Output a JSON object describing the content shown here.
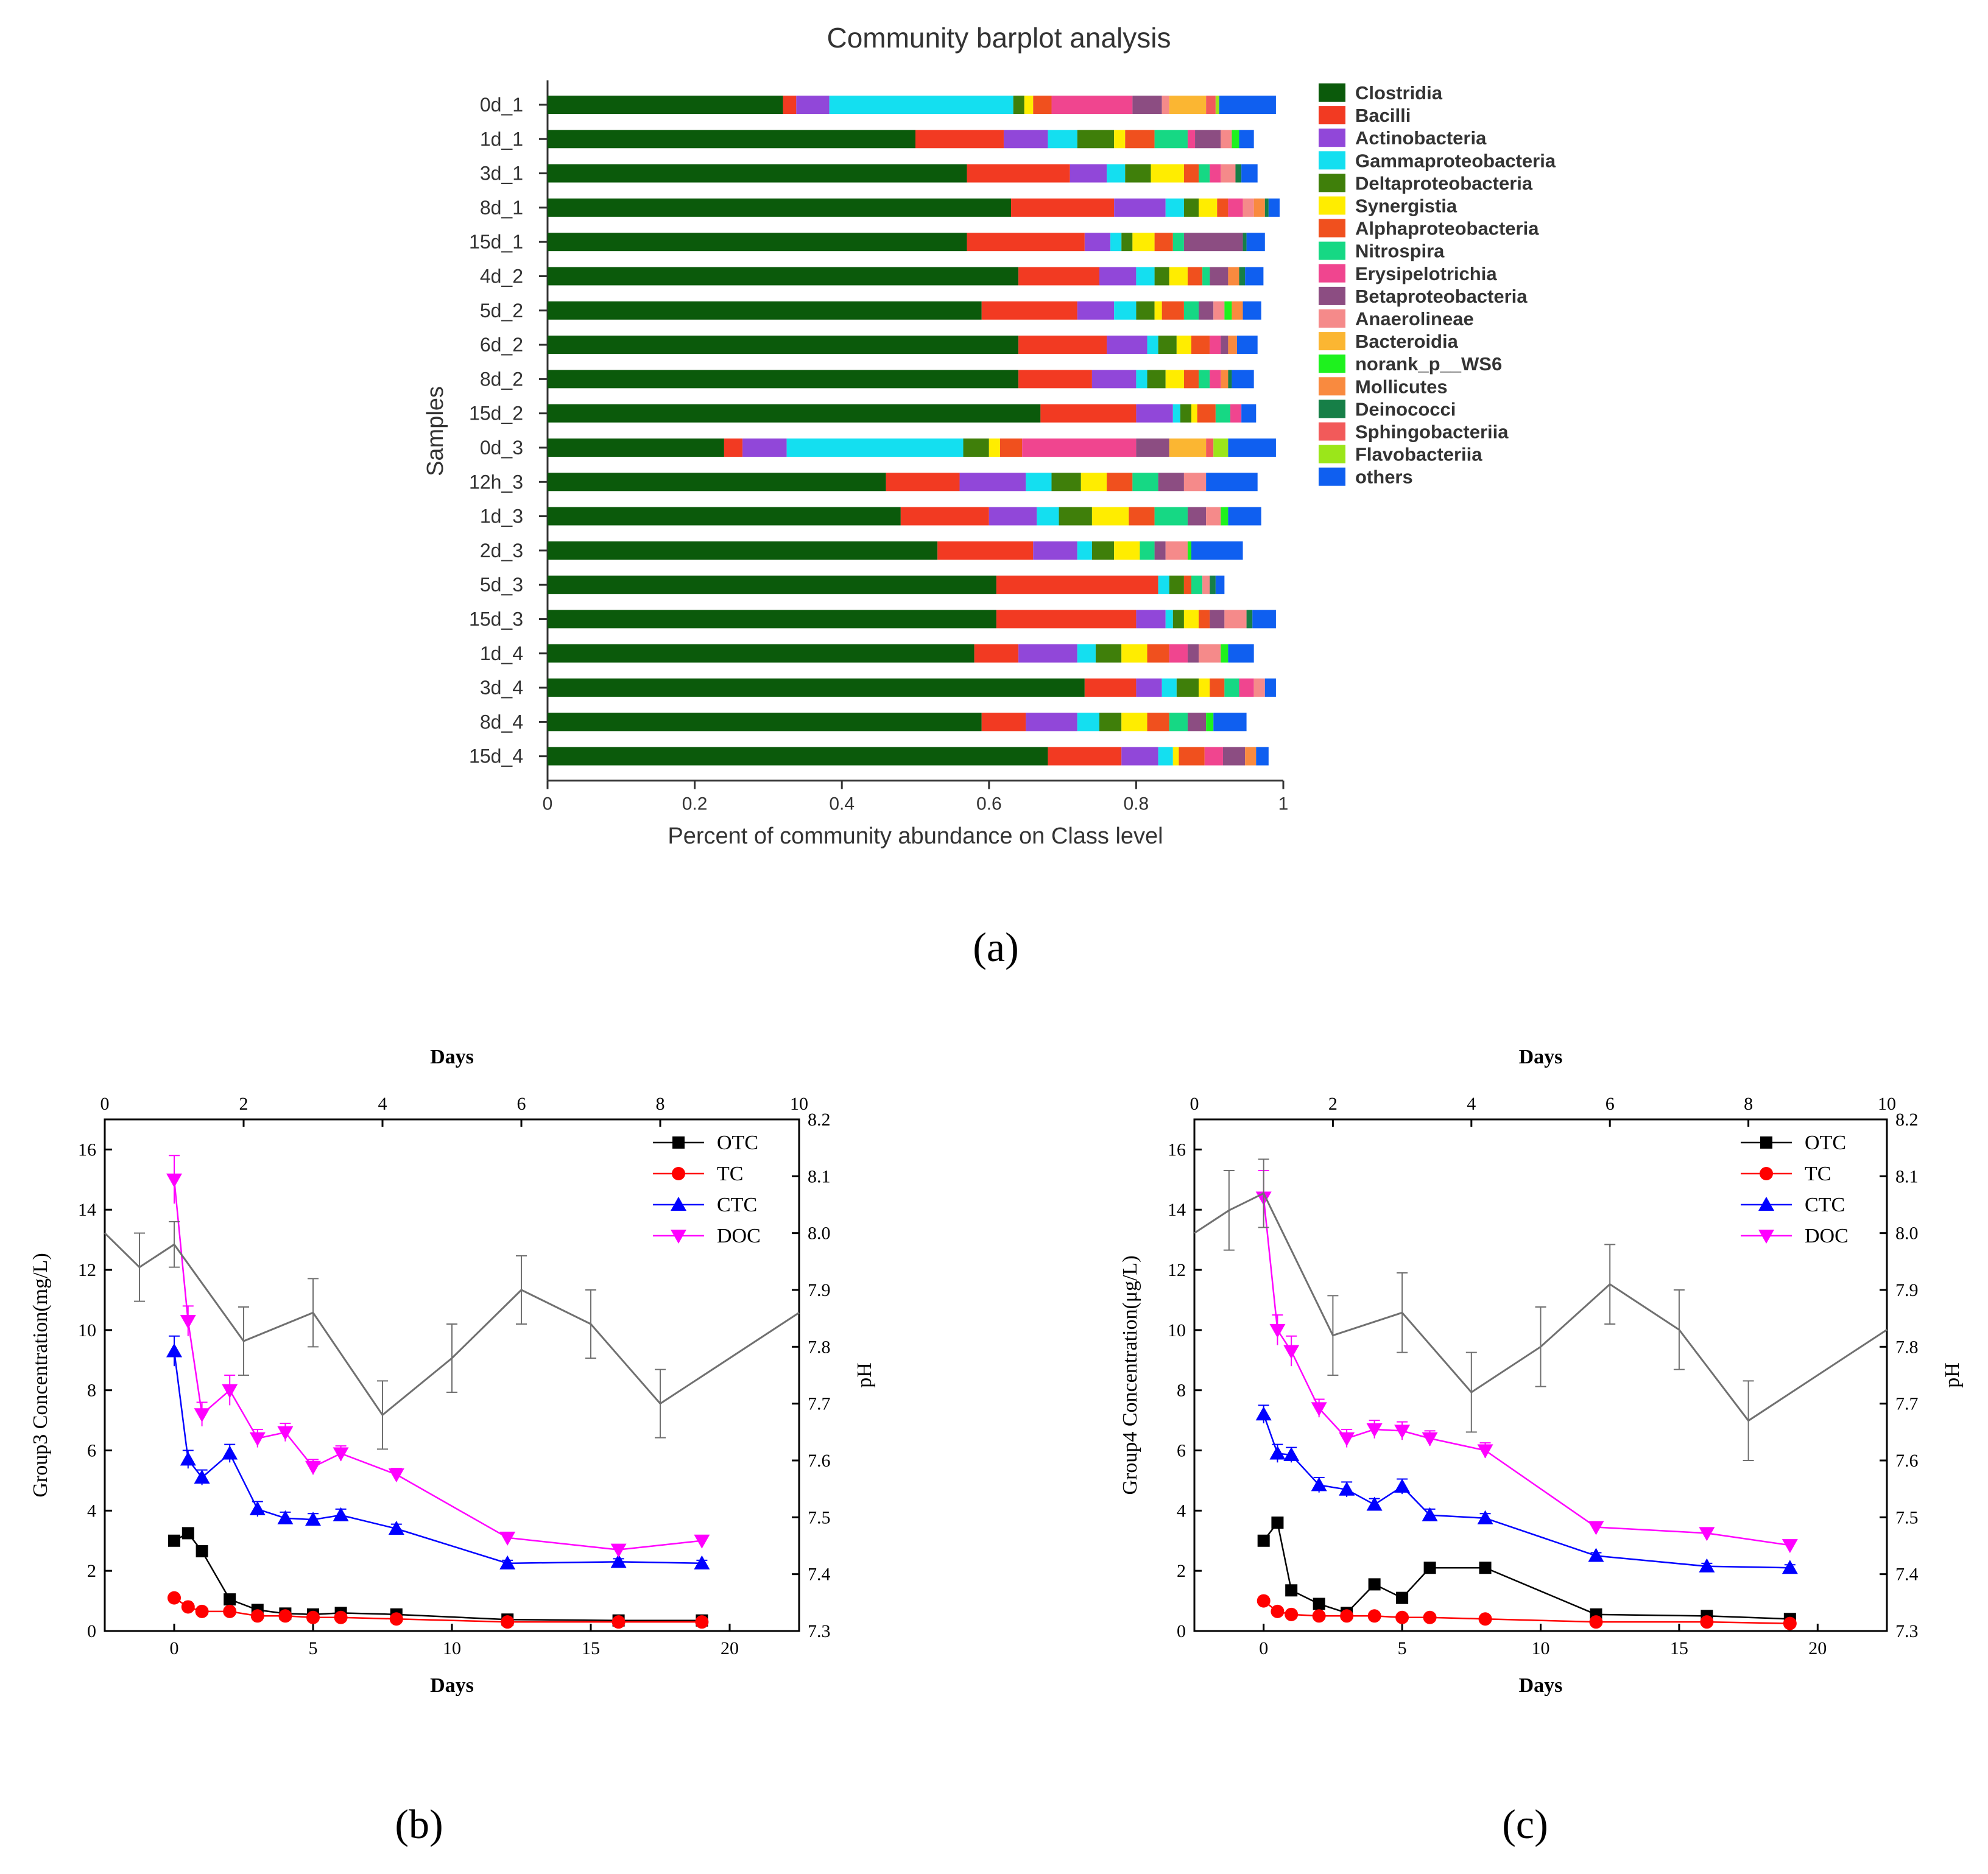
{
  "chart_data": [
    {
      "id": "a",
      "type": "bar",
      "orientation": "horizontal",
      "stacked": true,
      "title": "Community barplot analysis",
      "xlabel": "Percent of community abundance on Class level",
      "ylabel": "Samples",
      "xlim": [
        0,
        1
      ],
      "xticks": [
        "0",
        "0.2",
        "0.4",
        "0.6",
        "0.8",
        "1"
      ],
      "panel_label": "a",
      "categories": [
        "0d_1",
        "1d_1",
        "3d_1",
        "8d_1",
        "15d_1",
        "4d_2",
        "5d_2",
        "6d_2",
        "8d_2",
        "15d_2",
        "0d_3",
        "12h_3",
        "1d_3",
        "2d_3",
        "5d_3",
        "15d_3",
        "1d_4",
        "3d_4",
        "8d_4",
        "15d_4"
      ],
      "series": [
        {
          "name": "Clostridia",
          "color": "#0b5a0b",
          "values": [
            0.32,
            0.5,
            0.57,
            0.63,
            0.57,
            0.64,
            0.59,
            0.64,
            0.64,
            0.67,
            0.24,
            0.46,
            0.48,
            0.53,
            0.61,
            0.61,
            0.58,
            0.73,
            0.59,
            0.68
          ]
        },
        {
          "name": "Bacilli",
          "color": "#f23a22",
          "values": [
            0.018,
            0.12,
            0.14,
            0.14,
            0.16,
            0.11,
            0.13,
            0.12,
            0.1,
            0.13,
            0.025,
            0.1,
            0.12,
            0.13,
            0.22,
            0.19,
            0.06,
            0.07,
            0.06,
            0.1
          ]
        },
        {
          "name": "Actinobacteria",
          "color": "#9147d9",
          "values": [
            0.045,
            0.06,
            0.05,
            0.07,
            0.035,
            0.05,
            0.05,
            0.055,
            0.06,
            0.05,
            0.06,
            0.09,
            0.065,
            0.06,
            0.0,
            0.04,
            0.08,
            0.035,
            0.07,
            0.05
          ]
        },
        {
          "name": "Gammaproteobacteria",
          "color": "#14dff0",
          "values": [
            0.25,
            0.04,
            0.025,
            0.025,
            0.015,
            0.025,
            0.03,
            0.015,
            0.015,
            0.01,
            0.24,
            0.035,
            0.03,
            0.02,
            0.015,
            0.01,
            0.025,
            0.02,
            0.03,
            0.02
          ]
        },
        {
          "name": "Deltaproteobacteria",
          "color": "#3f7f0a",
          "values": [
            0.015,
            0.05,
            0.035,
            0.02,
            0.015,
            0.02,
            0.025,
            0.025,
            0.025,
            0.015,
            0.035,
            0.04,
            0.045,
            0.03,
            0.02,
            0.015,
            0.035,
            0.03,
            0.03,
            0.0
          ]
        },
        {
          "name": "Synergistia",
          "color": "#ffed00",
          "values": [
            0.012,
            0.015,
            0.045,
            0.025,
            0.03,
            0.025,
            0.01,
            0.02,
            0.025,
            0.008,
            0.015,
            0.035,
            0.05,
            0.035,
            0.0,
            0.02,
            0.035,
            0.015,
            0.035,
            0.008
          ]
        },
        {
          "name": "Alphaproteobacteria",
          "color": "#f0501e",
          "values": [
            0.025,
            0.04,
            0.02,
            0.015,
            0.025,
            0.02,
            0.03,
            0.025,
            0.02,
            0.025,
            0.03,
            0.035,
            0.035,
            0.0,
            0.01,
            0.015,
            0.03,
            0.02,
            0.03,
            0.035
          ]
        },
        {
          "name": "Nitrospira",
          "color": "#16d884",
          "values": [
            0.0,
            0.045,
            0.015,
            0.0,
            0.015,
            0.01,
            0.02,
            0.0,
            0.015,
            0.02,
            0.0,
            0.035,
            0.045,
            0.02,
            0.015,
            0.0,
            0.0,
            0.02,
            0.025,
            0.0
          ]
        },
        {
          "name": "Erysipelotrichia",
          "color": "#f0458f",
          "values": [
            0.11,
            0.01,
            0.015,
            0.02,
            0.0,
            0.0,
            0.0,
            0.015,
            0.015,
            0.015,
            0.155,
            0.0,
            0.0,
            0.0,
            0.0,
            0.0,
            0.025,
            0.02,
            0.0,
            0.025
          ]
        },
        {
          "name": "Betaproteobacteria",
          "color": "#8c4d82",
          "values": [
            0.04,
            0.035,
            0.0,
            0.0,
            0.08,
            0.025,
            0.02,
            0.01,
            0.0,
            0.0,
            0.045,
            0.035,
            0.025,
            0.015,
            0.0,
            0.02,
            0.015,
            0.0,
            0.025,
            0.03
          ]
        },
        {
          "name": "Anaerolineae",
          "color": "#f58a8a",
          "values": [
            0.01,
            0.015,
            0.02,
            0.015,
            0.0,
            0.0,
            0.015,
            0.0,
            0.0,
            0.0,
            0.0,
            0.03,
            0.02,
            0.03,
            0.01,
            0.03,
            0.03,
            0.015,
            0.0,
            0.0
          ]
        },
        {
          "name": "Bacteroidia",
          "color": "#fbb632",
          "values": [
            0.05,
            0.0,
            0.0,
            0.0,
            0.0,
            0.0,
            0.0,
            0.0,
            0.0,
            0.0,
            0.05,
            0.0,
            0.0,
            0.0,
            0.0,
            0.0,
            0.0,
            0.0,
            0.0,
            0.0
          ]
        },
        {
          "name": "norank_p__WS6",
          "color": "#1ef21e",
          "values": [
            0.0,
            0.01,
            0.0,
            0.0,
            0.0,
            0.0,
            0.01,
            0.0,
            0.0,
            0.0,
            0.0,
            0.0,
            0.01,
            0.005,
            0.0,
            0.0,
            0.01,
            0.0,
            0.01,
            0.0
          ]
        },
        {
          "name": "Mollicutes",
          "color": "#f98a3f",
          "values": [
            0.0,
            0.0,
            0.0,
            0.015,
            0.0,
            0.015,
            0.015,
            0.012,
            0.01,
            0.0,
            0.0,
            0.0,
            0.0,
            0.0,
            0.0,
            0.0,
            0.0,
            0.0,
            0.0,
            0.015
          ]
        },
        {
          "name": "Deinococci",
          "color": "#167f47",
          "values": [
            0.0,
            0.0,
            0.008,
            0.005,
            0.005,
            0.008,
            0.0,
            0.0,
            0.005,
            0.0,
            0.0,
            0.0,
            0.0,
            0.0,
            0.008,
            0.008,
            0.0,
            0.0,
            0.0,
            0.0
          ]
        },
        {
          "name": "Sphingobacteriia",
          "color": "#f25a5a",
          "values": [
            0.013,
            0.0,
            0.0,
            0.0,
            0.0,
            0.0,
            0.0,
            0.0,
            0.0,
            0.0,
            0.01,
            0.0,
            0.0,
            0.0,
            0.0,
            0.0,
            0.0,
            0.0,
            0.0,
            0.0
          ]
        },
        {
          "name": "Flavobacteriia",
          "color": "#9be61a",
          "values": [
            0.005,
            0.0,
            0.0,
            0.0,
            0.0,
            0.0,
            0.0,
            0.0,
            0.0,
            0.0,
            0.02,
            0.0,
            0.0,
            0.0,
            0.0,
            0.0,
            0.0,
            0.0,
            0.0,
            0.0
          ]
        },
        {
          "name": "others",
          "color": "#0f5ff0",
          "values": [
            0.077,
            0.02,
            0.022,
            0.015,
            0.025,
            0.025,
            0.025,
            0.028,
            0.03,
            0.02,
            0.065,
            0.07,
            0.045,
            0.07,
            0.012,
            0.032,
            0.035,
            0.015,
            0.045,
            0.017
          ]
        }
      ]
    },
    {
      "id": "b",
      "type": "line",
      "panel_label": "b",
      "xlabel": "Days",
      "top_xlabel": "Days",
      "ylabel": "Group3  Concentration(mg/L)",
      "y2label": "pH",
      "xlim": [
        -2.5,
        22.5
      ],
      "ylim": [
        0,
        17
      ],
      "top_xlim": [
        0,
        10
      ],
      "y2lim": [
        7.3,
        8.2
      ],
      "xticks": [
        "0",
        "5",
        "10",
        "15",
        "20"
      ],
      "yticks": [
        "0",
        "2",
        "4",
        "6",
        "8",
        "10",
        "12",
        "14",
        "16"
      ],
      "top_xticks": [
        "0",
        "2",
        "4",
        "6",
        "8",
        "10"
      ],
      "y2ticks": [
        "7.3",
        "7.4",
        "7.5",
        "7.6",
        "7.7",
        "7.8",
        "7.9",
        "8.0",
        "8.1",
        "8.2"
      ],
      "legend": [
        "OTC",
        "TC",
        "CTC",
        "DOC"
      ],
      "series": [
        {
          "name": "OTC",
          "color": "#000000",
          "marker": "square",
          "x": [
            0,
            0.5,
            1,
            2,
            3,
            4,
            5,
            6,
            8,
            12,
            16,
            19
          ],
          "y": [
            3.0,
            3.25,
            2.65,
            1.05,
            0.7,
            0.58,
            0.55,
            0.6,
            0.55,
            0.38,
            0.35,
            0.35
          ]
        },
        {
          "name": "TC",
          "color": "#ff0000",
          "marker": "circle",
          "x": [
            0,
            0.5,
            1,
            2,
            3,
            4,
            5,
            6,
            8,
            12,
            16,
            19
          ],
          "y": [
            1.1,
            0.8,
            0.65,
            0.65,
            0.5,
            0.5,
            0.45,
            0.45,
            0.4,
            0.3,
            0.3,
            0.3
          ]
        },
        {
          "name": "CTC",
          "color": "#0000ff",
          "marker": "triangle-up",
          "x": [
            0,
            0.5,
            1,
            2,
            3,
            4,
            5,
            6,
            8,
            12,
            16,
            19
          ],
          "y": [
            9.3,
            5.7,
            5.1,
            5.9,
            4.05,
            3.75,
            3.7,
            3.85,
            3.4,
            2.25,
            2.3,
            2.25
          ],
          "err": [
            0.5,
            0.3,
            0.25,
            0.3,
            0.25,
            0.2,
            0.2,
            0.2,
            0.15,
            0.1,
            0.1,
            0.1
          ]
        },
        {
          "name": "DOC",
          "color": "#ff00ff",
          "marker": "triangle-down",
          "x": [
            0,
            0.5,
            1,
            2,
            3,
            4,
            5,
            6,
            8,
            12,
            16,
            19
          ],
          "y": [
            15.0,
            10.3,
            7.2,
            8.0,
            6.4,
            6.6,
            5.45,
            5.9,
            5.2,
            3.1,
            2.7,
            3.0
          ],
          "err": [
            0.8,
            0.5,
            0.4,
            0.5,
            0.3,
            0.3,
            0.25,
            0.25,
            0.2,
            0.15,
            0.1,
            0.1
          ]
        },
        {
          "name": "pH",
          "color": "#707070",
          "marker": "none",
          "axis": "top-right",
          "x": [
            0,
            0.5,
            1,
            2,
            3,
            4,
            5,
            6,
            7,
            8,
            10
          ],
          "y": [
            8.0,
            7.94,
            7.98,
            7.81,
            7.86,
            7.68,
            7.78,
            7.9,
            7.84,
            7.7,
            7.86
          ],
          "err": [
            0.0,
            0.06,
            0.04,
            0.06,
            0.06,
            0.06,
            0.06,
            0.06,
            0.06,
            0.06,
            0.0
          ]
        }
      ]
    },
    {
      "id": "c",
      "type": "line",
      "panel_label": "c",
      "xlabel": "Days",
      "top_xlabel": "Days",
      "ylabel": "Group4  Concentration(μg/L)",
      "y2label": "pH",
      "xlim": [
        -2.5,
        22.5
      ],
      "ylim": [
        0,
        17
      ],
      "top_xlim": [
        0,
        10
      ],
      "y2lim": [
        7.3,
        8.2
      ],
      "xticks": [
        "0",
        "5",
        "10",
        "15",
        "20"
      ],
      "yticks": [
        "0",
        "2",
        "4",
        "6",
        "8",
        "10",
        "12",
        "14",
        "16"
      ],
      "top_xticks": [
        "0",
        "2",
        "4",
        "6",
        "8",
        "10"
      ],
      "y2ticks": [
        "7.3",
        "7.4",
        "7.5",
        "7.6",
        "7.7",
        "7.8",
        "7.9",
        "8.0",
        "8.1",
        "8.2"
      ],
      "legend": [
        "OTC",
        "TC",
        "CTC",
        "DOC"
      ],
      "series": [
        {
          "name": "OTC",
          "color": "#000000",
          "marker": "square",
          "x": [
            0,
            0.5,
            1,
            2,
            3,
            4,
            5,
            6,
            8,
            12,
            16,
            19
          ],
          "y": [
            3.0,
            3.6,
            1.35,
            0.9,
            0.6,
            1.55,
            1.1,
            2.1,
            2.1,
            0.55,
            0.5,
            0.4
          ]
        },
        {
          "name": "TC",
          "color": "#ff0000",
          "marker": "circle",
          "x": [
            0,
            0.5,
            1,
            2,
            3,
            4,
            5,
            6,
            8,
            12,
            16,
            19
          ],
          "y": [
            1.0,
            0.65,
            0.55,
            0.5,
            0.5,
            0.5,
            0.45,
            0.45,
            0.4,
            0.3,
            0.3,
            0.25
          ]
        },
        {
          "name": "CTC",
          "color": "#0000ff",
          "marker": "triangle-up",
          "x": [
            0,
            0.5,
            1,
            2,
            3,
            4,
            5,
            6,
            8,
            12,
            16,
            19
          ],
          "y": [
            7.2,
            5.9,
            5.85,
            4.85,
            4.7,
            4.2,
            4.8,
            3.85,
            3.75,
            2.5,
            2.15,
            2.1
          ],
          "err": [
            0.3,
            0.3,
            0.25,
            0.25,
            0.25,
            0.2,
            0.25,
            0.2,
            0.15,
            0.1,
            0.1,
            0.1
          ]
        },
        {
          "name": "DOC",
          "color": "#ff00ff",
          "marker": "triangle-down",
          "x": [
            0,
            0.5,
            1,
            2,
            3,
            4,
            5,
            6,
            8,
            12,
            16,
            19
          ],
          "y": [
            14.4,
            10.0,
            9.3,
            7.4,
            6.4,
            6.7,
            6.65,
            6.4,
            6.0,
            3.45,
            3.25,
            2.85
          ],
          "err": [
            0.9,
            0.5,
            0.5,
            0.3,
            0.3,
            0.3,
            0.3,
            0.25,
            0.25,
            0.15,
            0.1,
            0.1
          ]
        },
        {
          "name": "pH",
          "color": "#707070",
          "marker": "none",
          "axis": "top-right",
          "x": [
            0,
            0.5,
            1,
            2,
            3,
            4,
            5,
            6,
            7,
            8,
            10
          ],
          "y": [
            8.0,
            8.04,
            8.07,
            7.82,
            7.86,
            7.72,
            7.8,
            7.91,
            7.83,
            7.67,
            7.83
          ],
          "err": [
            0.0,
            0.07,
            0.06,
            0.07,
            0.07,
            0.07,
            0.07,
            0.07,
            0.07,
            0.07,
            0.0
          ]
        }
      ]
    }
  ]
}
